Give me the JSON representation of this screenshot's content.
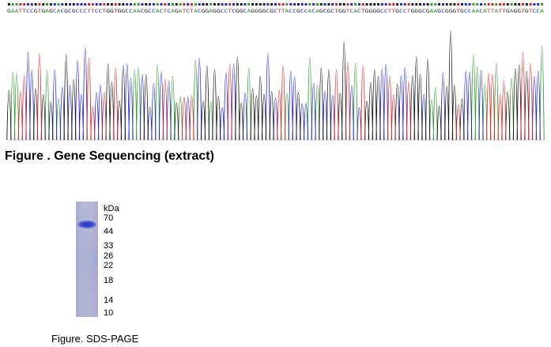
{
  "chromatogram": {
    "sequence": "GAATTCCGTGAGCACGCGCCCTTCCTGGTGGCCAACGCCACTCAGATCTACGGAGGCCTCGGCAGGGGCGCTTACCGCCACAGCGCTGGTCACTGGGGCCTTGCCTGGGCGAAGCGGGTGCCAACATTATTGAGGTGTCCA",
    "base_colors": {
      "A": "#2a9d2a",
      "C": "#1f1fd6",
      "G": "#111111",
      "T": "#e02020"
    }
  },
  "captions": {
    "sequencing": "Figure . Gene Sequencing (extract)",
    "sds_page": "Figure. SDS-PAGE"
  },
  "gel": {
    "unit_label": "kDa",
    "markers": [
      "70",
      "44",
      "33",
      "26",
      "22",
      "18",
      "14",
      "10"
    ],
    "lane_color": "#b1b4d4",
    "band_color": "#2a3fcc"
  }
}
